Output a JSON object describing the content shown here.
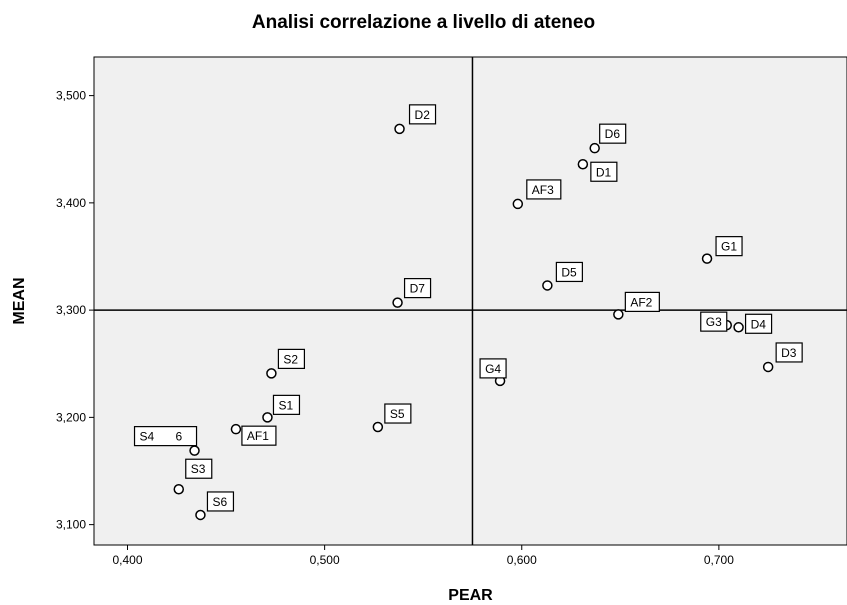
{
  "chart_data": {
    "type": "scatter",
    "title": "Analisi correlazione a livello di ateneo",
    "xlabel": "PEAR",
    "ylabel": "MEAN",
    "xlim": [
      0.383,
      0.765
    ],
    "ylim": [
      3.081,
      3.536
    ],
    "xticks": [
      0.4,
      0.5,
      0.6,
      0.7
    ],
    "xtick_labels": [
      "0,400",
      "0,500",
      "0,600",
      "0,700"
    ],
    "yticks": [
      3.1,
      3.2,
      3.3,
      3.4,
      3.5
    ],
    "ytick_labels": [
      "3,100",
      "3,200",
      "3,300",
      "3,400",
      "3,500"
    ],
    "reference_lines": {
      "x": 0.575,
      "y": 3.3
    },
    "background": "#f0f0f0",
    "points": [
      {
        "label": "D2",
        "x": 0.538,
        "y": 3.469
      },
      {
        "label": "D6",
        "x": 0.637,
        "y": 3.451
      },
      {
        "label": "D1",
        "x": 0.631,
        "y": 3.436
      },
      {
        "label": "AF3",
        "x": 0.598,
        "y": 3.399
      },
      {
        "label": "G1",
        "x": 0.694,
        "y": 3.348
      },
      {
        "label": "D5",
        "x": 0.613,
        "y": 3.323
      },
      {
        "label": "D7",
        "x": 0.537,
        "y": 3.307
      },
      {
        "label": "AF2",
        "x": 0.649,
        "y": 3.296
      },
      {
        "label": "G3",
        "x": 0.704,
        "y": 3.286
      },
      {
        "label": "D4",
        "x": 0.71,
        "y": 3.284
      },
      {
        "label": "D3",
        "x": 0.725,
        "y": 3.247
      },
      {
        "label": "S2",
        "x": 0.473,
        "y": 3.241
      },
      {
        "label": "G4",
        "x": 0.589,
        "y": 3.234
      },
      {
        "label": "S1",
        "x": 0.471,
        "y": 3.2
      },
      {
        "label": "S5",
        "x": 0.527,
        "y": 3.191
      },
      {
        "label": "AF1",
        "x": 0.455,
        "y": 3.189
      },
      {
        "label": "S4",
        "x": 0.434,
        "y": 3.169
      },
      {
        "label": "6",
        "x": 0.434,
        "y": 3.169
      },
      {
        "label": "S3",
        "x": 0.426,
        "y": 3.133
      },
      {
        "label": "S6",
        "x": 0.437,
        "y": 3.109
      }
    ]
  }
}
